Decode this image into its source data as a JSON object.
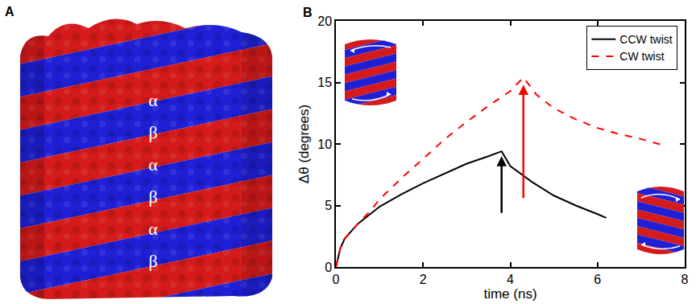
{
  "panel_a": {
    "panel_label": "A",
    "subunit_labels": [
      "α",
      "β",
      "α",
      "β",
      "α",
      "β"
    ]
  },
  "chart_data": {
    "type": "line",
    "panel_label": "B",
    "x_label": "time (ns)",
    "y_label": "Δθ (degrees)",
    "xlim": [
      0,
      8
    ],
    "xticks": [
      0,
      2,
      4,
      6,
      8
    ],
    "ylim": [
      0,
      20
    ],
    "yticks": [
      0,
      5,
      10,
      15,
      20
    ],
    "grid": false,
    "legend": "top right",
    "series": [
      {
        "name": "CCW twist",
        "color": "#000000",
        "line_style": "solid",
        "x": [
          0,
          0.1,
          0.2,
          0.5,
          1,
          1.5,
          2,
          2.5,
          3,
          3.5,
          3.8,
          4,
          4.5,
          5,
          5.5,
          6,
          6.2
        ],
        "values": [
          0,
          1.5,
          2.3,
          3.5,
          4.9,
          5.9,
          6.8,
          7.6,
          8.4,
          9.0,
          9.4,
          8.2,
          6.9,
          5.8,
          5.0,
          4.3,
          4.0
        ]
      },
      {
        "name": "CW twist",
        "color": "#ff0000",
        "line_style": "dash",
        "x": [
          0,
          0.1,
          0.2,
          0.5,
          0.8,
          1,
          1.5,
          2,
          2.5,
          3,
          3.5,
          4,
          4.3,
          4.6,
          5,
          5.5,
          6,
          6.5,
          7,
          7.5
        ],
        "values": [
          0,
          1.5,
          2.3,
          3.5,
          4.6,
          5.5,
          7.2,
          8.8,
          10.4,
          11.8,
          13.1,
          14.3,
          15.4,
          14.0,
          12.9,
          12.0,
          11.3,
          10.8,
          10.4,
          9.9
        ]
      }
    ],
    "arrows": [
      {
        "x": 3.8,
        "from": 4.3,
        "to": 9.0,
        "color": "#000000"
      },
      {
        "x": 4.3,
        "from": 5.5,
        "to": 14.8,
        "color": "#ff0000"
      }
    ]
  }
}
